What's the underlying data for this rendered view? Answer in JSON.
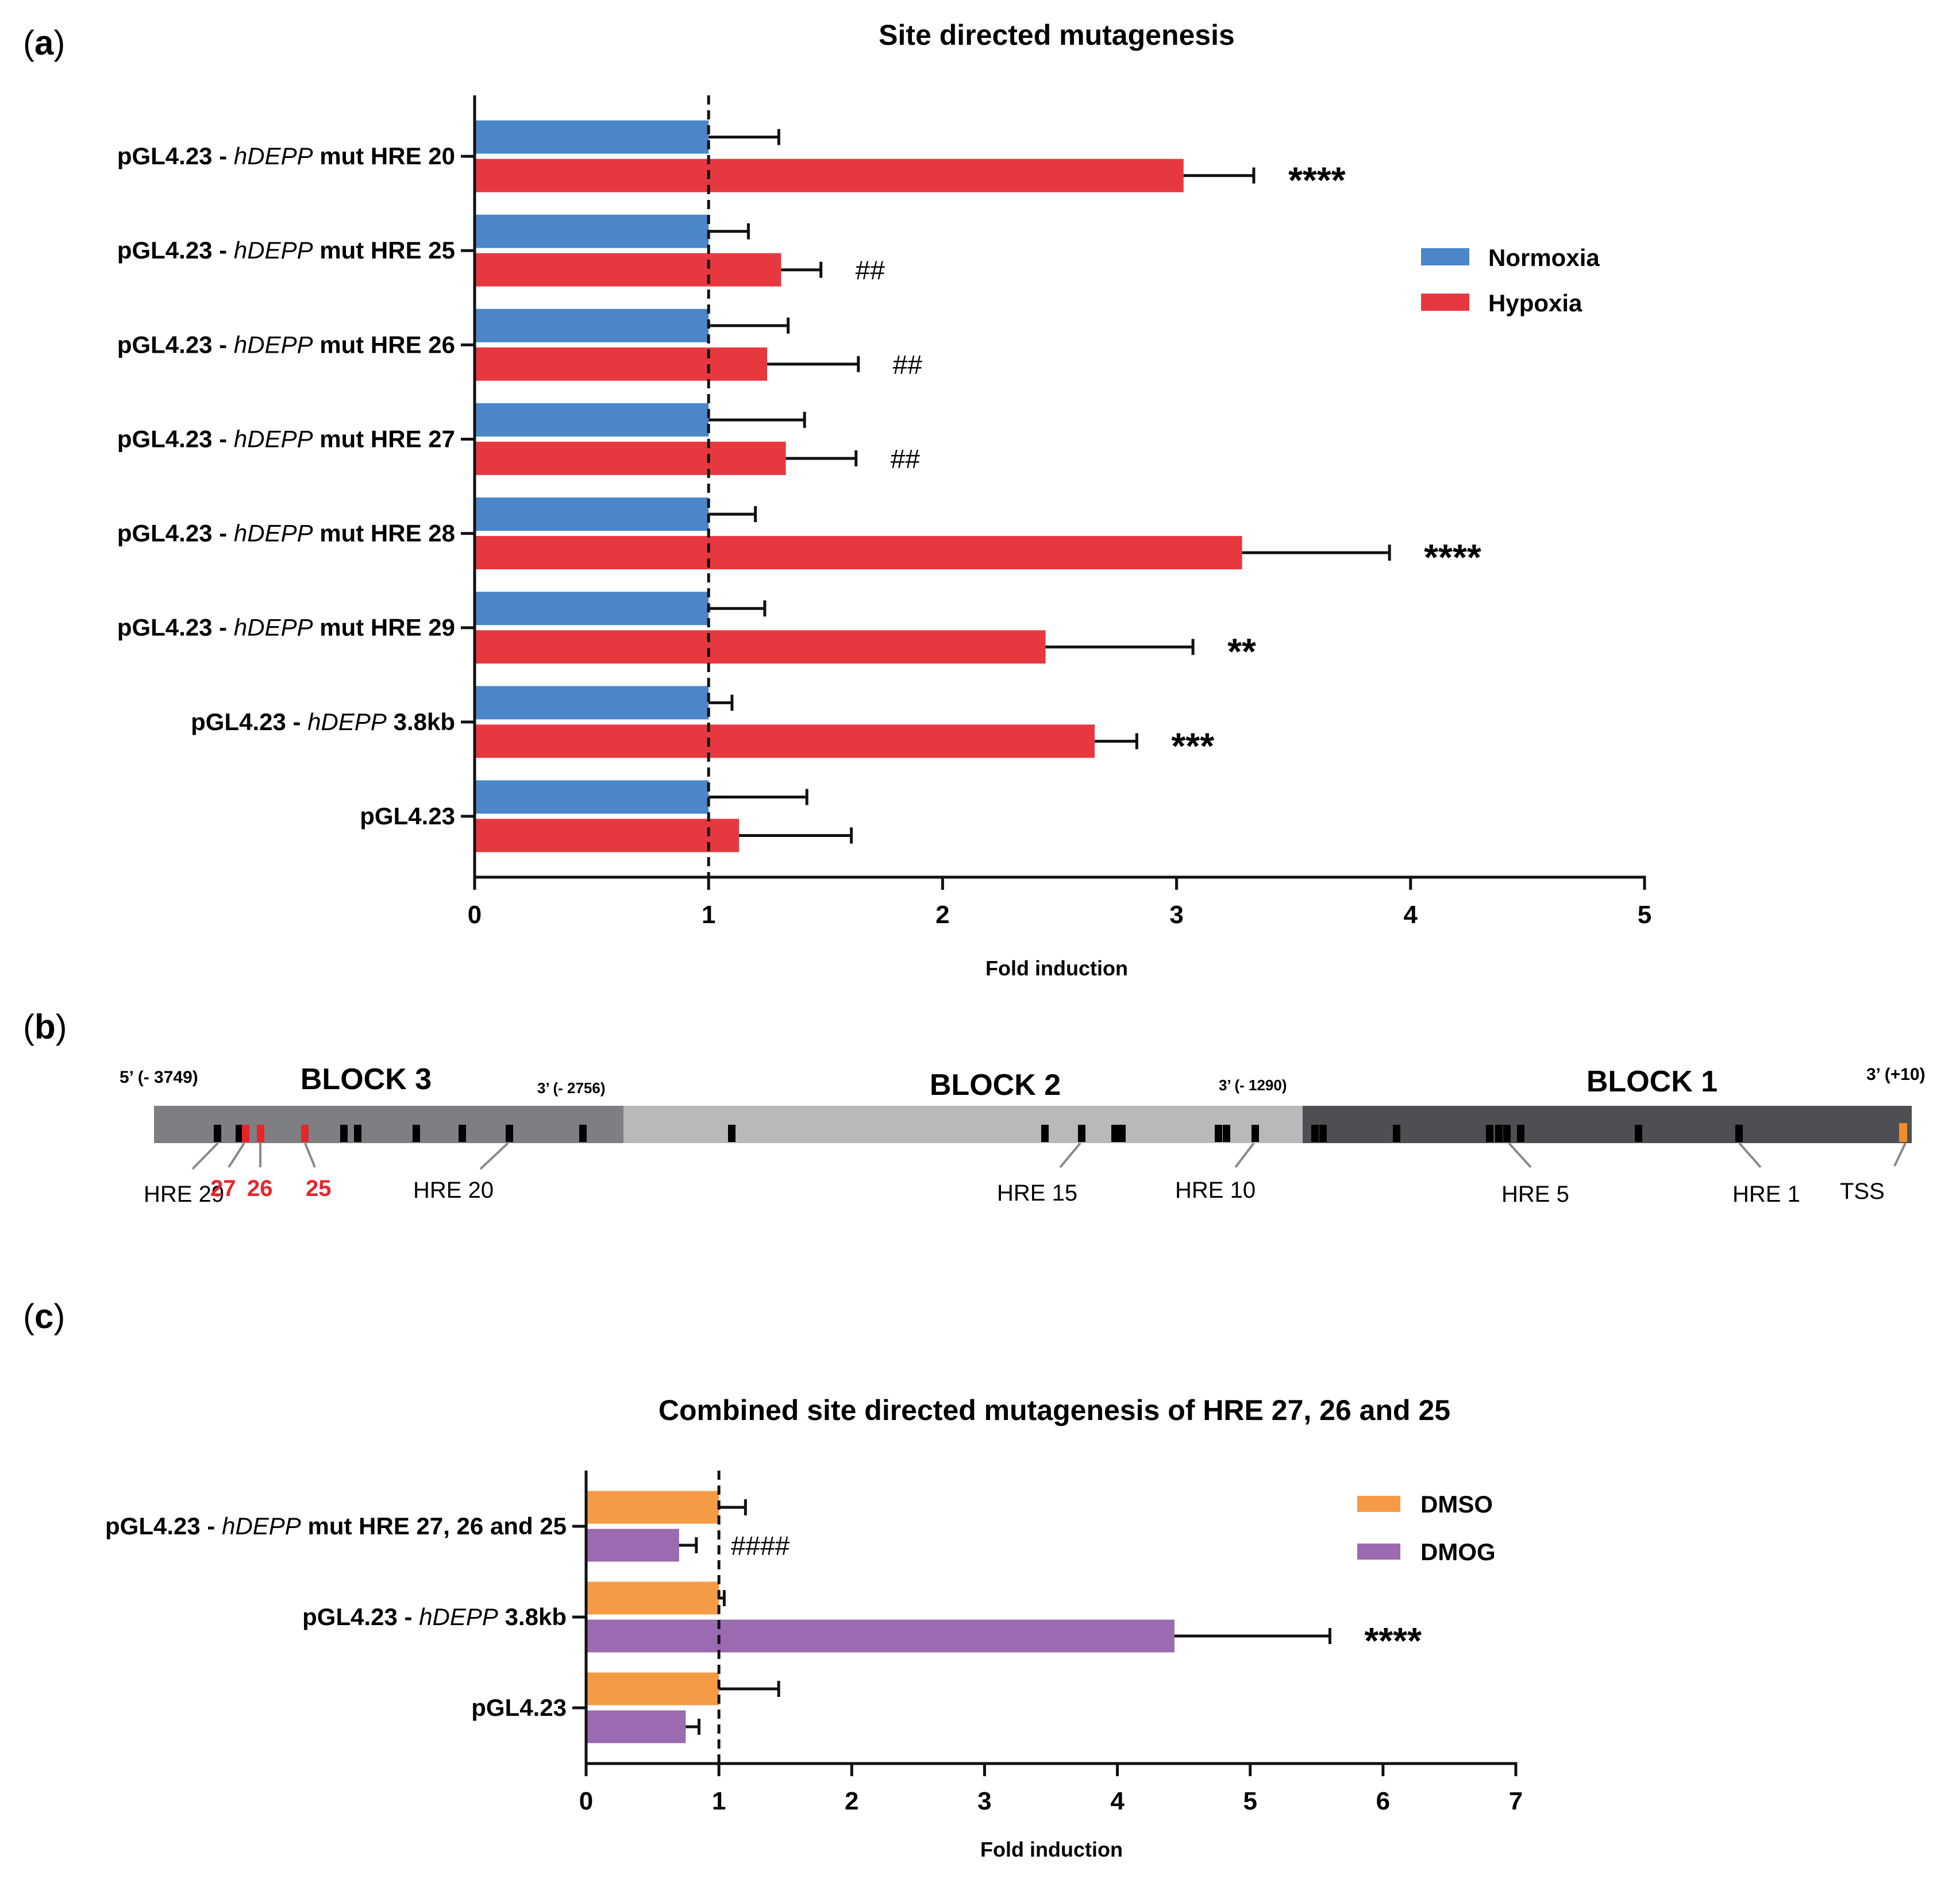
{
  "panel_a": {
    "letter_pre": "(",
    "letter": "a",
    "letter_post": ")",
    "chart_title": "Site directed mutagenesis",
    "xlabel": "Fold induction",
    "legend": [
      {
        "label": "Normoxia",
        "color": "#4a86c8"
      },
      {
        "label": "Hypoxia",
        "color": "#e8383f"
      }
    ]
  },
  "panel_b": {
    "letter_pre": "(",
    "letter": "b",
    "letter_post": ")",
    "blocks": [
      {
        "label": "BLOCK 3",
        "color": "#7d7f82"
      },
      {
        "label": "BLOCK 2",
        "color": "#b7b9bb"
      },
      {
        "label": "BLOCK 1",
        "color": "#4d4f52"
      }
    ],
    "coord_labels": [
      "5’ (- 3749)",
      "3’ (- 2756)",
      "3’ (- 1290)",
      "3’  (+10)"
    ],
    "hre_labels": [
      {
        "text": "HRE 29",
        "red": false
      },
      {
        "text": "27",
        "red": true
      },
      {
        "text": "26",
        "red": true
      },
      {
        "text": "25",
        "red": true
      },
      {
        "text": "HRE 20",
        "red": false
      },
      {
        "text": "HRE 15",
        "red": false
      },
      {
        "text": "HRE 10",
        "red": false
      },
      {
        "text": "HRE 5",
        "red": false
      },
      {
        "text": "HRE 1",
        "red": false
      },
      {
        "text": "TSS",
        "red": false
      }
    ],
    "colors": {
      "hre_mark": "#000000",
      "mutated_mark": "#e8232a",
      "tss_mark": "#f28c28",
      "connector": "#8a8a8a"
    }
  },
  "panel_c": {
    "letter_pre": "(",
    "letter": "c",
    "letter_post": ")",
    "chart_title": "Combined site directed mutagenesis of HRE 27, 26 and 25",
    "xlabel": "Fold induction",
    "legend": [
      {
        "label": "DMSO",
        "color": "#f59b46"
      },
      {
        "label": "DMOG",
        "color": "#9b6ab0"
      }
    ]
  },
  "chart_data": [
    {
      "type": "bar",
      "orientation": "horizontal",
      "title": "Site directed mutagenesis",
      "xlabel": "Fold induction",
      "xlim": [
        0,
        5
      ],
      "xticks": [
        "0",
        "1",
        "2",
        "3",
        "4",
        "5"
      ],
      "reference_line": 1,
      "categories": [
        {
          "pre": "pGL4.23 - ",
          "gene": "hDEPP",
          "post": " mut HRE 20"
        },
        {
          "pre": "pGL4.23 - ",
          "gene": "hDEPP",
          "post": " mut HRE 25"
        },
        {
          "pre": "pGL4.23 - ",
          "gene": "hDEPP",
          "post": " mut HRE 26"
        },
        {
          "pre": "pGL4.23 - ",
          "gene": "hDEPP",
          "post": " mut HRE 27"
        },
        {
          "pre": "pGL4.23 - ",
          "gene": "hDEPP",
          "post": " mut HRE 28"
        },
        {
          "pre": "pGL4.23 - ",
          "gene": "hDEPP",
          "post": " mut HRE 29"
        },
        {
          "pre": "pGL4.23 - ",
          "gene": "hDEPP",
          "post": " 3.8kb"
        },
        {
          "pre": "pGL4.23",
          "gene": "",
          "post": ""
        }
      ],
      "series": [
        {
          "name": "Normoxia",
          "values": [
            1.0,
            1.0,
            1.0,
            1.0,
            1.0,
            1.0,
            1.0,
            1.0
          ],
          "errors": [
            0.3,
            0.17,
            0.34,
            0.41,
            0.2,
            0.24,
            0.1,
            0.42
          ]
        },
        {
          "name": "Hypoxia",
          "values": [
            3.03,
            1.31,
            1.25,
            1.33,
            3.28,
            2.44,
            2.65,
            1.13
          ],
          "errors": [
            0.3,
            0.17,
            0.39,
            0.3,
            0.63,
            0.63,
            0.18,
            0.48
          ]
        }
      ],
      "annotations": [
        "****",
        "##",
        "##",
        "##",
        "****",
        "**",
        "***",
        ""
      ]
    },
    {
      "type": "bar",
      "orientation": "horizontal",
      "title": "Combined site directed mutagenesis of HRE 27, 26 and 25",
      "xlabel": "Fold induction",
      "xlim": [
        0,
        7
      ],
      "xticks": [
        "0",
        "1",
        "2",
        "3",
        "4",
        "5",
        "6",
        "7"
      ],
      "reference_line": 1,
      "categories": [
        {
          "pre": "pGL4.23 - ",
          "gene": "hDEPP",
          "post": " mut HRE 27, 26 and 25"
        },
        {
          "pre": "pGL4.23 - ",
          "gene": "hDEPP",
          "post": " 3.8kb"
        },
        {
          "pre": "pGL4.23",
          "gene": "",
          "post": ""
        }
      ],
      "series": [
        {
          "name": "DMSO",
          "values": [
            1.0,
            1.0,
            1.0
          ],
          "errors": [
            0.2,
            0.04,
            0.45
          ]
        },
        {
          "name": "DMOG",
          "values": [
            0.7,
            4.43,
            0.75
          ],
          "errors": [
            0.13,
            1.17,
            0.1
          ]
        }
      ],
      "annotations": [
        "####",
        "****",
        ""
      ]
    }
  ]
}
